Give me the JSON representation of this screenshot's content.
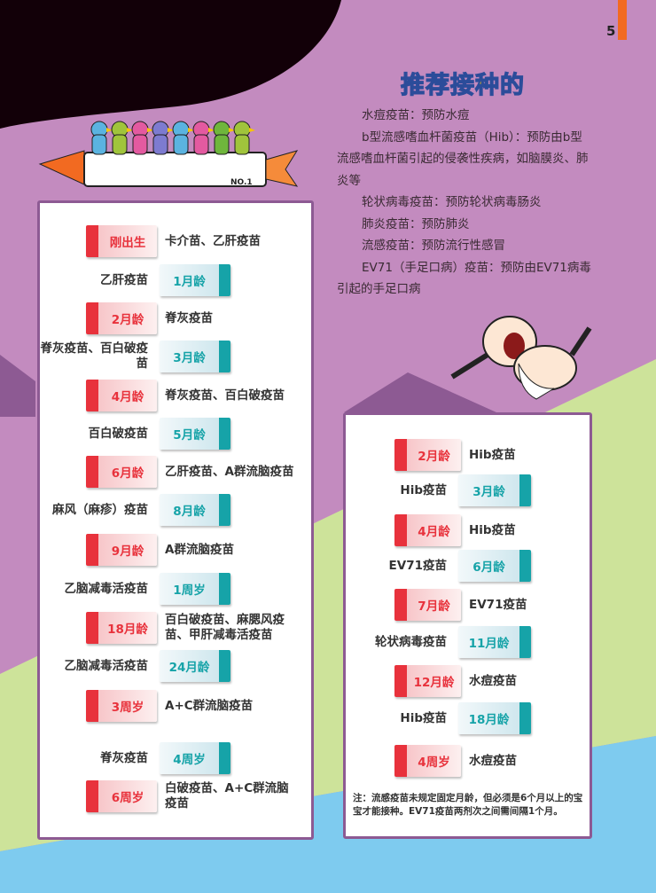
{
  "page_number": "5",
  "title": "推荐接种的",
  "intro": [
    "水痘疫苗：预防水痘",
    "b型流感嗜血杆菌疫苗（Hib）：预防由b型流感嗜血杆菌引起的侵袭性疾病，如脑膜炎、肺炎等",
    "轮状病毒疫苗：预防轮状病毒肠炎",
    "肺炎疫苗：预防肺炎",
    "流感疫苗：预防流行性感冒",
    "EV71（手足口病）疫苗：预防由EV71病毒引起的手足口病"
  ],
  "rocket_label": "NO.1",
  "colors": {
    "red": "#e8323c",
    "teal": "#16a3a8",
    "purple": "#c38bbf",
    "green": "#cde39a",
    "blue": "#7ecbef"
  },
  "left_schedule": [
    {
      "age": "刚出生",
      "vaccine": "卡介苗、乙肝疫苗",
      "style": "red"
    },
    {
      "age": "1月龄",
      "vaccine": "乙肝疫苗",
      "style": "teal"
    },
    {
      "age": "2月龄",
      "vaccine": "脊灰疫苗",
      "style": "red"
    },
    {
      "age": "3月龄",
      "vaccine": "脊灰疫苗、百白破疫苗",
      "style": "teal"
    },
    {
      "age": "4月龄",
      "vaccine": "脊灰疫苗、百白破疫苗",
      "style": "red"
    },
    {
      "age": "5月龄",
      "vaccine": "百白破疫苗",
      "style": "teal"
    },
    {
      "age": "6月龄",
      "vaccine": "乙肝疫苗、A群流脑疫苗",
      "style": "red"
    },
    {
      "age": "8月龄",
      "vaccine": "麻风（麻疹）疫苗",
      "style": "teal"
    },
    {
      "age": "9月龄",
      "vaccine": "A群流脑疫苗",
      "style": "red"
    },
    {
      "age": "1周岁",
      "vaccine": "乙脑减毒活疫苗",
      "style": "teal"
    },
    {
      "age": "18月龄",
      "vaccine": "百白破疫苗、麻腮风疫苗、甲肝减毒活疫苗",
      "style": "red"
    },
    {
      "age": "24月龄",
      "vaccine": "乙脑减毒活疫苗",
      "style": "teal"
    },
    {
      "age": "3周岁",
      "vaccine": "A+C群流脑疫苗",
      "style": "red"
    },
    {
      "age": "4周岁",
      "vaccine": "脊灰疫苗",
      "style": "teal"
    },
    {
      "age": "6周岁",
      "vaccine": "白破疫苗、A+C群流脑疫苗",
      "style": "red"
    }
  ],
  "right_schedule": [
    {
      "age": "2月龄",
      "vaccine": "Hib疫苗",
      "style": "red"
    },
    {
      "age": "3月龄",
      "vaccine": "Hib疫苗",
      "style": "teal"
    },
    {
      "age": "4月龄",
      "vaccine": "Hib疫苗",
      "style": "red"
    },
    {
      "age": "6月龄",
      "vaccine": "EV71疫苗",
      "style": "teal"
    },
    {
      "age": "7月龄",
      "vaccine": "EV71疫苗",
      "style": "red"
    },
    {
      "age": "11月龄",
      "vaccine": "轮状病毒疫苗",
      "style": "teal"
    },
    {
      "age": "12月龄",
      "vaccine": "水痘疫苗",
      "style": "red"
    },
    {
      "age": "18月龄",
      "vaccine": "Hib疫苗",
      "style": "teal"
    },
    {
      "age": "4周岁",
      "vaccine": "水痘疫苗",
      "style": "red"
    }
  ],
  "note": "注：流感疫苗未规定固定月龄，但必须是6个月以上的宝宝才能接种。EV71疫苗两剂次之间需间隔1个月。"
}
